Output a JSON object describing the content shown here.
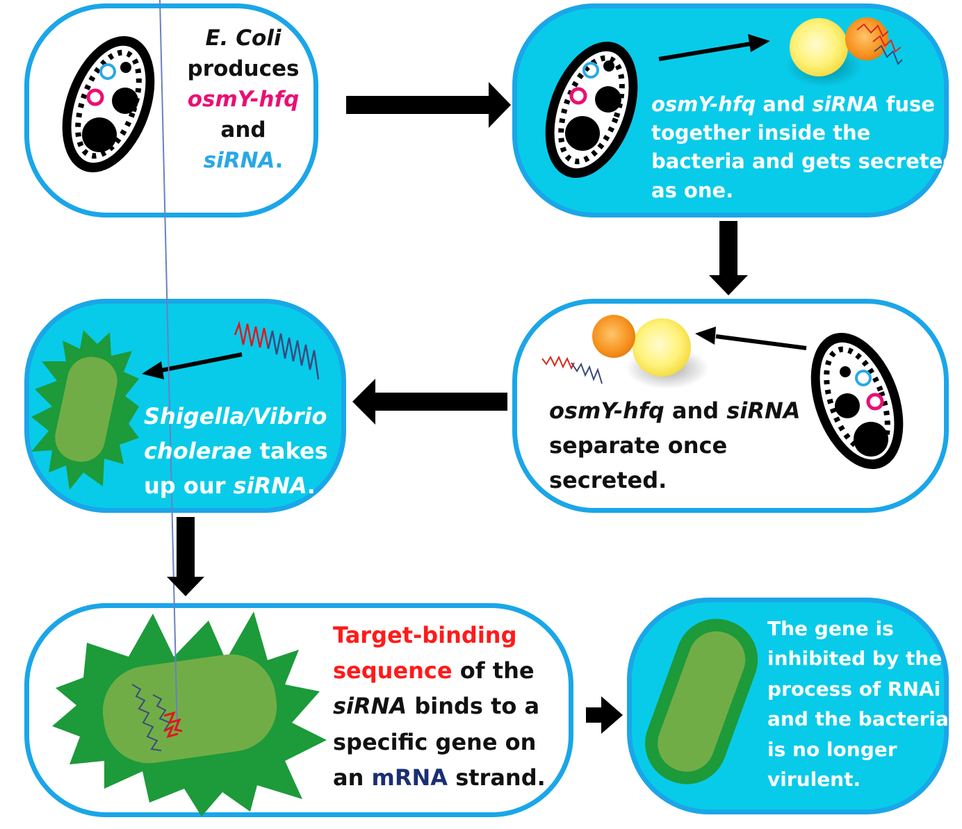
{
  "steps": [
    {
      "segments": [
        {
          "text": "E. Coli",
          "style": "italic",
          "color": "#111111"
        },
        {
          "text": "produces",
          "style": "normal",
          "color": "#111111"
        },
        {
          "text": "osmY-hfq",
          "style": "italic",
          "color": "#ea0f74"
        },
        {
          "text": "and",
          "style": "normal",
          "color": "#111111"
        },
        {
          "text": "siRNA",
          "style": "italic",
          "color": "#2aa8e6"
        },
        {
          "text": ".",
          "style": "normal",
          "color": "#2aa8e6"
        }
      ]
    },
    {
      "segments": [
        {
          "text": "osmY-hfq",
          "style": "italic"
        },
        {
          "text": " and ",
          "style": "normal"
        },
        {
          "text": "siRNA",
          "style": "italic"
        },
        {
          "text": " fuse",
          "style": "normal"
        },
        {
          "text": "together inside the",
          "style": "normal"
        },
        {
          "text": "bacteria and gets secreted",
          "style": "normal"
        },
        {
          "text": "as one.",
          "style": "normal"
        }
      ]
    },
    {
      "segments": [
        {
          "text": "osmY-hfq",
          "style": "italic"
        },
        {
          "text": " and ",
          "style": "normal"
        },
        {
          "text": "siRNA",
          "style": "italic"
        },
        {
          "text": "separate once",
          "style": "normal"
        },
        {
          "text": "secreted.",
          "style": "normal"
        }
      ]
    },
    {
      "segments": [
        {
          "text": "Shigella/Vibrio",
          "style": "italic"
        },
        {
          "text": "cholerae",
          "style": "italic"
        },
        {
          "text": " takes",
          "style": "normal"
        },
        {
          "text": "up our ",
          "style": "normal"
        },
        {
          "text": "siRNA",
          "style": "italic"
        },
        {
          "text": ".",
          "style": "normal"
        }
      ]
    },
    {
      "segments": [
        {
          "text": "Target-binding",
          "style": "normal",
          "color": "#ff1a1a"
        },
        {
          "text": "sequence",
          "style": "normal",
          "color": "#ff1a1a"
        },
        {
          "text": " of the",
          "style": "normal",
          "color": "#111111"
        },
        {
          "text": "siRNA",
          "style": "italic",
          "color": "#111111"
        },
        {
          "text": " binds to a",
          "style": "normal",
          "color": "#111111"
        },
        {
          "text": "specific gene on",
          "style": "normal",
          "color": "#111111"
        },
        {
          "text": "an ",
          "style": "normal",
          "color": "#111111"
        },
        {
          "text": "mRNA",
          "style": "normal",
          "color": "#1a2f72"
        },
        {
          "text": " strand.",
          "style": "normal",
          "color": "#111111"
        }
      ]
    },
    {
      "segments": [
        {
          "text": "The gene is",
          "style": "normal"
        },
        {
          "text": "inhibited by the",
          "style": "normal"
        },
        {
          "text": "process of RNAi",
          "style": "normal"
        },
        {
          "text": "and the bacteria",
          "style": "normal"
        },
        {
          "text": "is no longer",
          "style": "normal"
        },
        {
          "text": "virulent.",
          "style": "normal"
        }
      ]
    }
  ],
  "colors": {
    "panel_border": "#1aa6e8",
    "panel_fill_cyan": "#08cbe9",
    "panel_fill_white": "#ffffff",
    "bacterium_green_dark": "#1d9a3a",
    "bacterium_green_light": "#71ad47",
    "protein_yellow": "#ffef6a",
    "protein_orange": "#f6921e",
    "rna_red": "#e3151d",
    "rna_blue": "#3a4a7c"
  },
  "icons": [
    "ecoli-cell-icon",
    "fused-protein-icon",
    "sirna-strand-icon",
    "spiky-bacterium-icon",
    "inhibited-bacterium-icon",
    "flow-arrow-icon"
  ]
}
